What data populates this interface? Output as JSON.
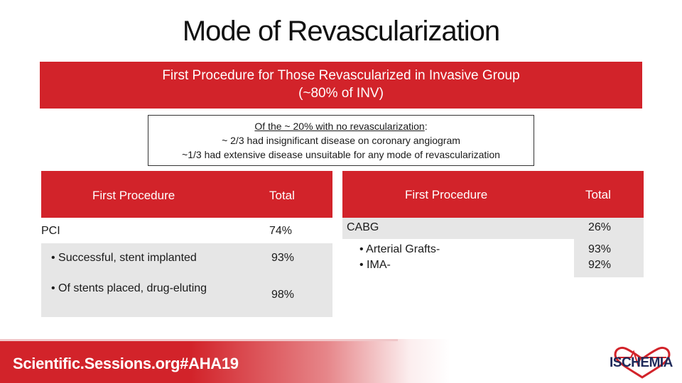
{
  "title": "Mode of Revascularization",
  "banner": {
    "line1": "First Procedure for Those Revascularized in Invasive Group",
    "line2": "(~80% of INV)"
  },
  "note": {
    "lead_underlined": "Of the ~ 20% with no revascularization",
    "lead_suffix": ":",
    "line2": "~ 2/3 had insignificant disease on coronary angiogram",
    "line3": "~1/3 had extensive disease unsuitable for any mode of revascularization"
  },
  "left_table": {
    "headers": {
      "procedure": "First Procedure",
      "total": "Total"
    },
    "rows": [
      {
        "label": "PCI",
        "value": "74%"
      },
      {
        "label": "• Successful, stent implanted",
        "value": "93%"
      },
      {
        "label": "• Of stents placed, drug-eluting",
        "value": "98%"
      }
    ]
  },
  "right_table": {
    "headers": {
      "procedure": "First Procedure",
      "total": "Total"
    },
    "rows": [
      {
        "label": "CABG",
        "value": "26%"
      },
      {
        "label1": "• Arterial Grafts-",
        "label2": "• IMA-",
        "value1": "93%",
        "value2": "92%"
      }
    ]
  },
  "footer": {
    "brand": "Scientific.Sessions.org#AHA19",
    "logo_text": "ISCHEMIA",
    "colors": {
      "accent": "#d2232a",
      "logo_heart": "#d2232a",
      "logo_text": "#1e2a5a"
    }
  }
}
